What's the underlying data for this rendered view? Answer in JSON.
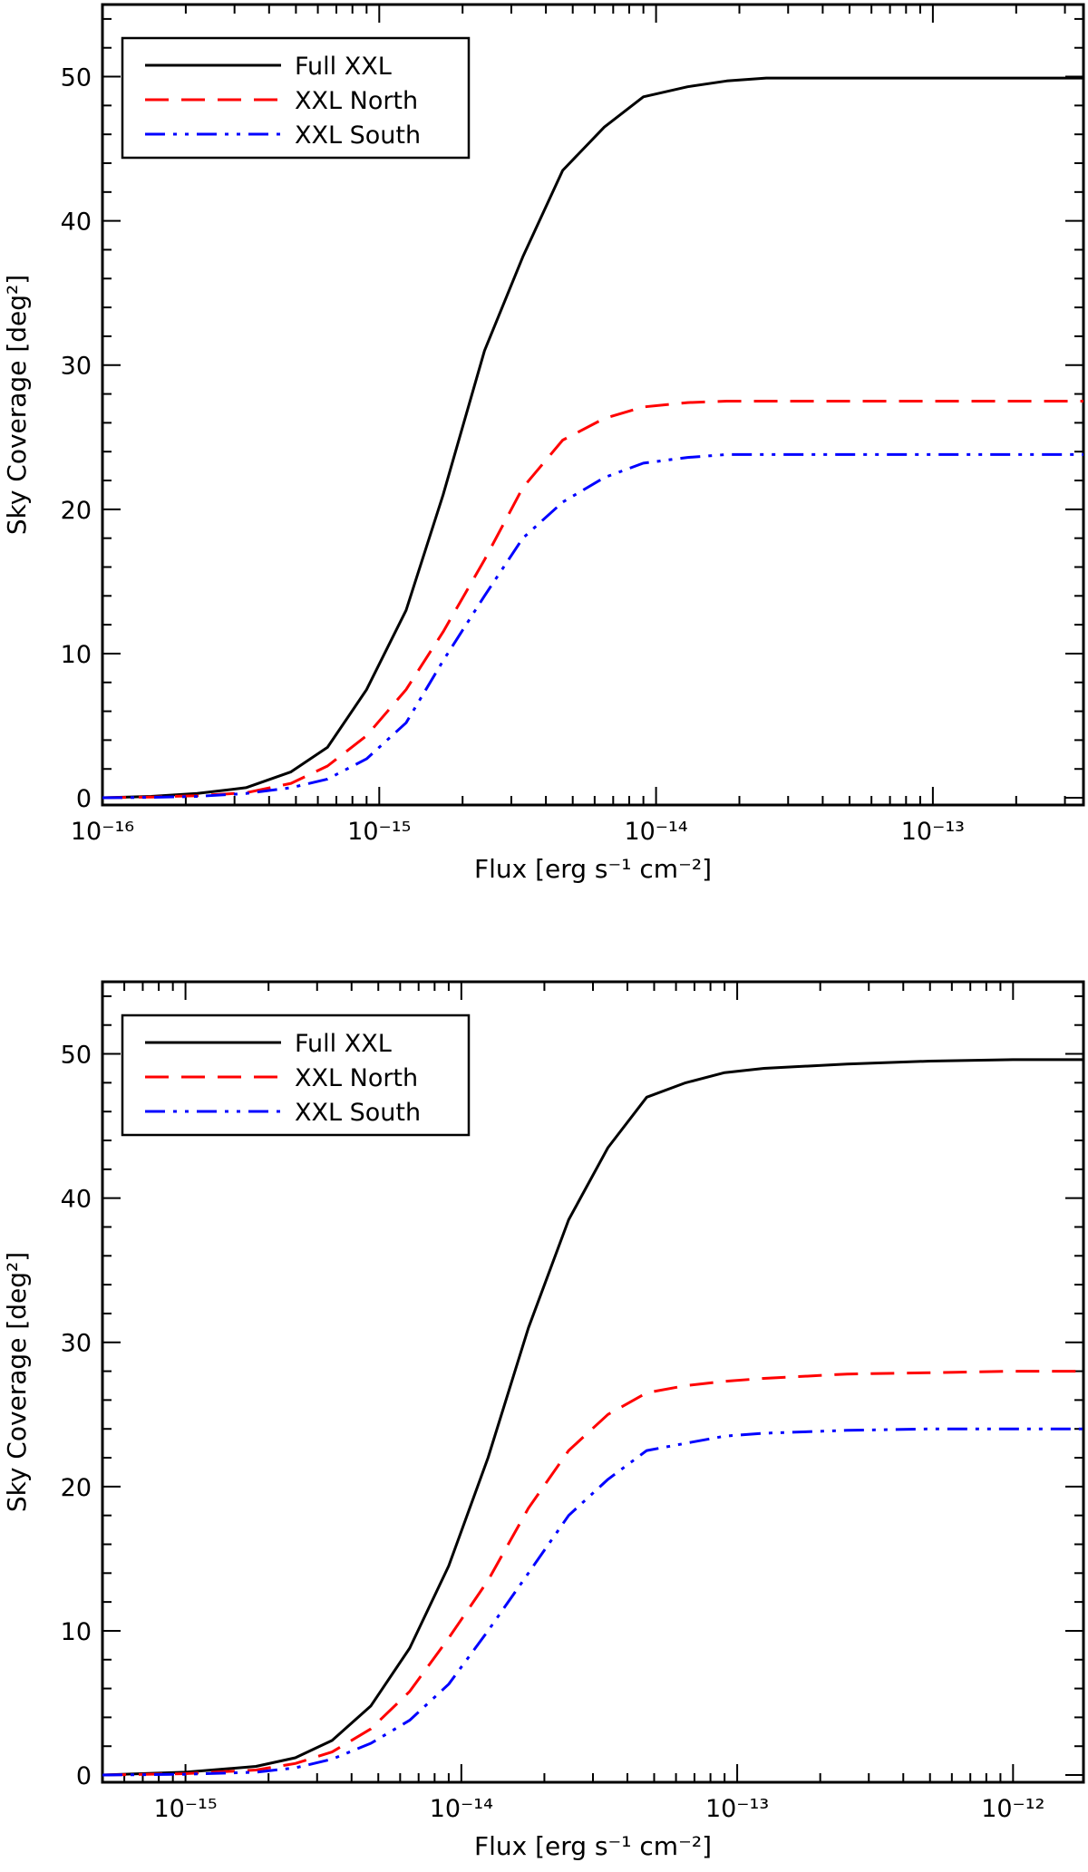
{
  "chart_data": [
    {
      "type": "line",
      "xlabel": "Flux [erg s⁻¹ cm⁻²]",
      "ylabel": "Sky Coverage [deg²]",
      "xscale": "log",
      "xlim": [
        1e-16,
        3.5e-13
      ],
      "ylim": [
        -0.5,
        55
      ],
      "x_ticks": [
        "10⁻¹⁶",
        "10⁻¹⁵",
        "10⁻¹⁴",
        "10⁻¹³"
      ],
      "y_ticks": [
        "0",
        "10",
        "20",
        "30",
        "40",
        "50"
      ],
      "legend_position": "top-left",
      "grid": false,
      "series": [
        {
          "name": "Full XXL",
          "color": "#000000",
          "style": "solid",
          "x": [
            1e-16,
            1.5e-16,
            2.2e-16,
            3.3e-16,
            4.8e-16,
            6.5e-16,
            9e-16,
            1.25e-15,
            1.7e-15,
            2.4e-15,
            3.3e-15,
            4.6e-15,
            6.5e-15,
            9e-15,
            1.3e-14,
            1.8e-14,
            2.5e-14,
            5e-14,
            1e-13,
            3.5e-13
          ],
          "y": [
            0,
            0.1,
            0.3,
            0.7,
            1.8,
            3.5,
            7.5,
            13,
            21,
            31,
            37.5,
            43.5,
            46.5,
            48.6,
            49.3,
            49.7,
            49.9,
            49.9,
            49.9,
            49.9
          ]
        },
        {
          "name": "XXL North",
          "color": "#ff0000",
          "style": "dashed",
          "x": [
            1e-16,
            1.5e-16,
            2.2e-16,
            3.3e-16,
            4.8e-16,
            6.5e-16,
            9e-16,
            1.25e-15,
            1.7e-15,
            2.4e-15,
            3.3e-15,
            4.6e-15,
            6.5e-15,
            9e-15,
            1.3e-14,
            1.8e-14,
            2.5e-14,
            5e-14,
            1e-13,
            3.5e-13
          ],
          "y": [
            0,
            0.05,
            0.15,
            0.35,
            1.0,
            2.2,
            4.3,
            7.5,
            11.5,
            16.5,
            21.5,
            24.8,
            26.3,
            27.1,
            27.4,
            27.5,
            27.5,
            27.5,
            27.5,
            27.5
          ]
        },
        {
          "name": "XXL South",
          "color": "#0000ff",
          "style": "dash-dot-dot",
          "x": [
            1e-16,
            1.5e-16,
            2.2e-16,
            3.3e-16,
            4.8e-16,
            6.5e-16,
            9e-16,
            1.25e-15,
            1.7e-15,
            2.4e-15,
            3.3e-15,
            4.6e-15,
            6.5e-15,
            9e-15,
            1.3e-14,
            1.8e-14,
            2.5e-14,
            5e-14,
            1e-13,
            3.5e-13
          ],
          "y": [
            0,
            0.03,
            0.1,
            0.3,
            0.7,
            1.3,
            2.7,
            5.2,
            9.5,
            14,
            18,
            20.5,
            22.2,
            23.2,
            23.6,
            23.8,
            23.8,
            23.8,
            23.8,
            23.8
          ]
        }
      ]
    },
    {
      "type": "line",
      "xlabel": "Flux [erg s⁻¹ cm⁻²]",
      "ylabel": "Sky Coverage [deg²]",
      "xscale": "log",
      "xlim": [
        5e-16,
        1.8e-12
      ],
      "ylim": [
        -0.5,
        55
      ],
      "x_ticks": [
        "10⁻¹⁵",
        "10⁻¹⁴",
        "10⁻¹³",
        "10⁻¹²"
      ],
      "y_ticks": [
        "0",
        "10",
        "20",
        "30",
        "40",
        "50"
      ],
      "legend_position": "top-left",
      "grid": false,
      "series": [
        {
          "name": "Full XXL",
          "color": "#000000",
          "style": "solid",
          "x": [
            5e-16,
            1e-15,
            1.8e-15,
            2.5e-15,
            3.4e-15,
            4.7e-15,
            6.5e-15,
            9e-15,
            1.25e-14,
            1.75e-14,
            2.45e-14,
            3.4e-14,
            4.7e-14,
            6.5e-14,
            9e-14,
            1.25e-13,
            2.5e-13,
            5e-13,
            1e-12,
            1.8e-12
          ],
          "y": [
            0,
            0.2,
            0.6,
            1.2,
            2.4,
            4.8,
            8.8,
            14.5,
            22,
            31,
            38.5,
            43.5,
            47,
            48,
            48.7,
            49,
            49.3,
            49.5,
            49.6,
            49.6
          ]
        },
        {
          "name": "XXL North",
          "color": "#ff0000",
          "style": "dashed",
          "x": [
            5e-16,
            1e-15,
            1.8e-15,
            2.5e-15,
            3.4e-15,
            4.7e-15,
            6.5e-15,
            9e-15,
            1.25e-14,
            1.75e-14,
            2.45e-14,
            3.4e-14,
            4.7e-14,
            6.5e-14,
            9e-14,
            1.25e-13,
            2.5e-13,
            5e-13,
            1e-12,
            1.8e-12
          ],
          "y": [
            0,
            0.1,
            0.35,
            0.8,
            1.6,
            3.2,
            5.8,
            9.5,
            13.5,
            18.5,
            22.5,
            25,
            26.5,
            27,
            27.3,
            27.5,
            27.8,
            27.9,
            28,
            28
          ]
        },
        {
          "name": "XXL South",
          "color": "#0000ff",
          "style": "dash-dot-dot",
          "x": [
            5e-16,
            1e-15,
            1.8e-15,
            2.5e-15,
            3.4e-15,
            4.7e-15,
            6.5e-15,
            9e-15,
            1.25e-14,
            1.75e-14,
            2.45e-14,
            3.4e-14,
            4.7e-14,
            6.5e-14,
            9e-14,
            1.25e-13,
            2.5e-13,
            5e-13,
            1e-12,
            1.8e-12
          ],
          "y": [
            0,
            0.05,
            0.2,
            0.5,
            1.1,
            2.2,
            3.8,
            6.3,
            10,
            14,
            18,
            20.5,
            22.5,
            23,
            23.5,
            23.7,
            23.9,
            24,
            24,
            24
          ]
        }
      ]
    }
  ]
}
